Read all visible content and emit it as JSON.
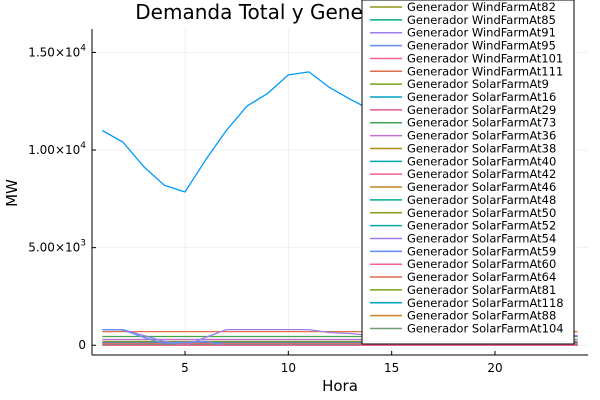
{
  "chart_data": {
    "type": "line",
    "title": "Demanda Total y Generación",
    "xlabel": "Hora",
    "ylabel": "MW",
    "xlim": [
      0.5,
      24.5
    ],
    "ylim": [
      -500,
      16200
    ],
    "x_ticks": [
      5,
      10,
      15,
      20
    ],
    "y_ticks": [
      {
        "value": 0,
        "mantissa": "0",
        "exponent": ""
      },
      {
        "value": 5000,
        "mantissa": "5.00×10",
        "exponent": "3"
      },
      {
        "value": 10000,
        "mantissa": "1.00×10",
        "exponent": "4"
      },
      {
        "value": 15000,
        "mantissa": "1.50×10",
        "exponent": "4"
      }
    ],
    "grid": true,
    "legend_position": "top-right",
    "x": [
      1,
      2,
      3,
      4,
      5,
      6,
      7,
      8,
      9,
      10,
      11,
      12,
      13,
      14,
      15,
      16,
      17,
      18,
      19,
      20,
      21,
      22,
      23,
      24
    ],
    "series": [
      {
        "color": "#009AFA",
        "values": [
          11000,
          10400,
          9150,
          8200,
          7850,
          9500,
          11000,
          12250,
          12900,
          13850,
          14000,
          13200,
          12600,
          12050,
          null,
          null,
          null,
          null,
          null,
          null,
          null,
          null,
          null,
          12850
        ]
      },
      {
        "color": "#E36F47",
        "values": [
          700,
          700,
          700,
          700,
          700,
          700,
          700,
          700,
          700,
          700,
          700,
          700,
          700,
          700,
          700,
          700,
          700,
          700,
          700,
          700,
          700,
          700,
          700,
          700
        ]
      },
      {
        "color": "#3EA44E",
        "values": [
          450,
          450,
          450,
          450,
          450,
          450,
          450,
          450,
          450,
          450,
          450,
          450,
          450,
          450,
          450,
          450,
          450,
          450,
          450,
          450,
          450,
          450,
          450,
          450
        ]
      },
      {
        "color": "#C271D2",
        "values": [
          300,
          300,
          300,
          300,
          300,
          300,
          300,
          300,
          300,
          300,
          300,
          300,
          300,
          300,
          300,
          300,
          300,
          300,
          300,
          300,
          300,
          300,
          300,
          300
        ]
      },
      {
        "color": "#AC8D18",
        "values": [
          200,
          200,
          200,
          200,
          200,
          200,
          200,
          200,
          200,
          200,
          200,
          200,
          200,
          200,
          200,
          200,
          200,
          200,
          200,
          200,
          200,
          200,
          200,
          200
        ]
      },
      {
        "color": "#00A9AD",
        "values": [
          150,
          150,
          150,
          150,
          150,
          150,
          150,
          150,
          150,
          150,
          150,
          150,
          150,
          150,
          150,
          150,
          150,
          150,
          150,
          150,
          150,
          150,
          150,
          150
        ]
      },
      {
        "color": "#ED5E93",
        "values": [
          100,
          100,
          100,
          100,
          100,
          100,
          100,
          100,
          100,
          100,
          100,
          100,
          100,
          100,
          100,
          100,
          100,
          100,
          100,
          100,
          100,
          100,
          100,
          100
        ]
      },
      {
        "color": "#C68225",
        "values": [
          50,
          50,
          50,
          50,
          50,
          50,
          50,
          50,
          50,
          50,
          50,
          50,
          50,
          50,
          50,
          50,
          50,
          50,
          50,
          50,
          50,
          50,
          50,
          50
        ]
      },
      {
        "color": "#00A98D",
        "values": [
          20,
          20,
          20,
          20,
          20,
          20,
          20,
          20,
          20,
          20,
          20,
          20,
          20,
          20,
          20,
          20,
          20,
          20,
          20,
          20,
          20,
          20,
          20,
          20
        ]
      },
      {
        "color": "#8E971D",
        "values": [
          0,
          0,
          0,
          0,
          0,
          0,
          0,
          0,
          0,
          0,
          0,
          0,
          0,
          0,
          0,
          0,
          0,
          0,
          0,
          0,
          0,
          0,
          0,
          0
        ]
      },
      {
        "color": "#9B7FE9",
        "values": [
          800,
          800,
          500,
          200,
          0,
          400,
          800,
          800,
          800,
          800,
          800,
          650,
          600,
          500,
          500,
          500,
          500,
          500,
          500,
          500,
          500,
          500,
          500,
          500
        ]
      },
      {
        "color": "#618DF6",
        "values": [
          800,
          780,
          400,
          100,
          150,
          200,
          0,
          0,
          0,
          0,
          0,
          0,
          0,
          0,
          0,
          0,
          0,
          0,
          0,
          0,
          0,
          0,
          0,
          0
        ]
      },
      {
        "color": "#F2638A",
        "values": [
          0,
          0,
          0,
          0,
          0,
          0,
          0,
          0,
          0,
          0,
          0,
          0,
          0,
          0,
          0,
          0,
          0,
          0,
          0,
          0,
          0,
          0,
          0,
          0
        ]
      }
    ],
    "legend": [
      {
        "name": "Generador WindFarmAt82",
        "color": "#8E971D"
      },
      {
        "name": "Generador WindFarmAt85",
        "color": "#00A98D"
      },
      {
        "name": "Generador WindFarmAt91",
        "color": "#9B7FE9"
      },
      {
        "name": "Generador WindFarmAt95",
        "color": "#618DF6"
      },
      {
        "name": "Generador WindFarmAt101",
        "color": "#F2638A"
      },
      {
        "name": "Generador WindFarmAt111",
        "color": "#DA6F4C"
      },
      {
        "name": "Generador SolarFarmAt9",
        "color": "#78A01E"
      },
      {
        "name": "Generador SolarFarmAt16",
        "color": "#00A4C0"
      },
      {
        "name": "Generador SolarFarmAt29",
        "color": "#E05B8A"
      },
      {
        "name": "Generador SolarFarmAt73",
        "color": "#3EA44E"
      },
      {
        "name": "Generador SolarFarmAt36",
        "color": "#C271D2"
      },
      {
        "name": "Generador SolarFarmAt38",
        "color": "#AC8D18"
      },
      {
        "name": "Generador SolarFarmAt40",
        "color": "#00A9AD"
      },
      {
        "name": "Generador SolarFarmAt42",
        "color": "#ED5E93"
      },
      {
        "name": "Generador SolarFarmAt46",
        "color": "#C68225"
      },
      {
        "name": "Generador SolarFarmAt48",
        "color": "#00A98D"
      },
      {
        "name": "Generador SolarFarmAt50",
        "color": "#8E971D"
      },
      {
        "name": "Generador SolarFarmAt52",
        "color": "#00A9AD"
      },
      {
        "name": "Generador SolarFarmAt54",
        "color": "#9B7FE9"
      },
      {
        "name": "Generador SolarFarmAt59",
        "color": "#618DF6"
      },
      {
        "name": "Generador SolarFarmAt60",
        "color": "#F2638A"
      },
      {
        "name": "Generador SolarFarmAt64",
        "color": "#DA6F4C"
      },
      {
        "name": "Generador SolarFarmAt81",
        "color": "#78A01E"
      },
      {
        "name": "Generador SolarFarmAt118",
        "color": "#00A4C0"
      },
      {
        "name": "Generador SolarFarmAt88",
        "color": "#C68225"
      },
      {
        "name": "Generador SolarFarmAt104",
        "color": "#6E9F7A"
      }
    ]
  }
}
